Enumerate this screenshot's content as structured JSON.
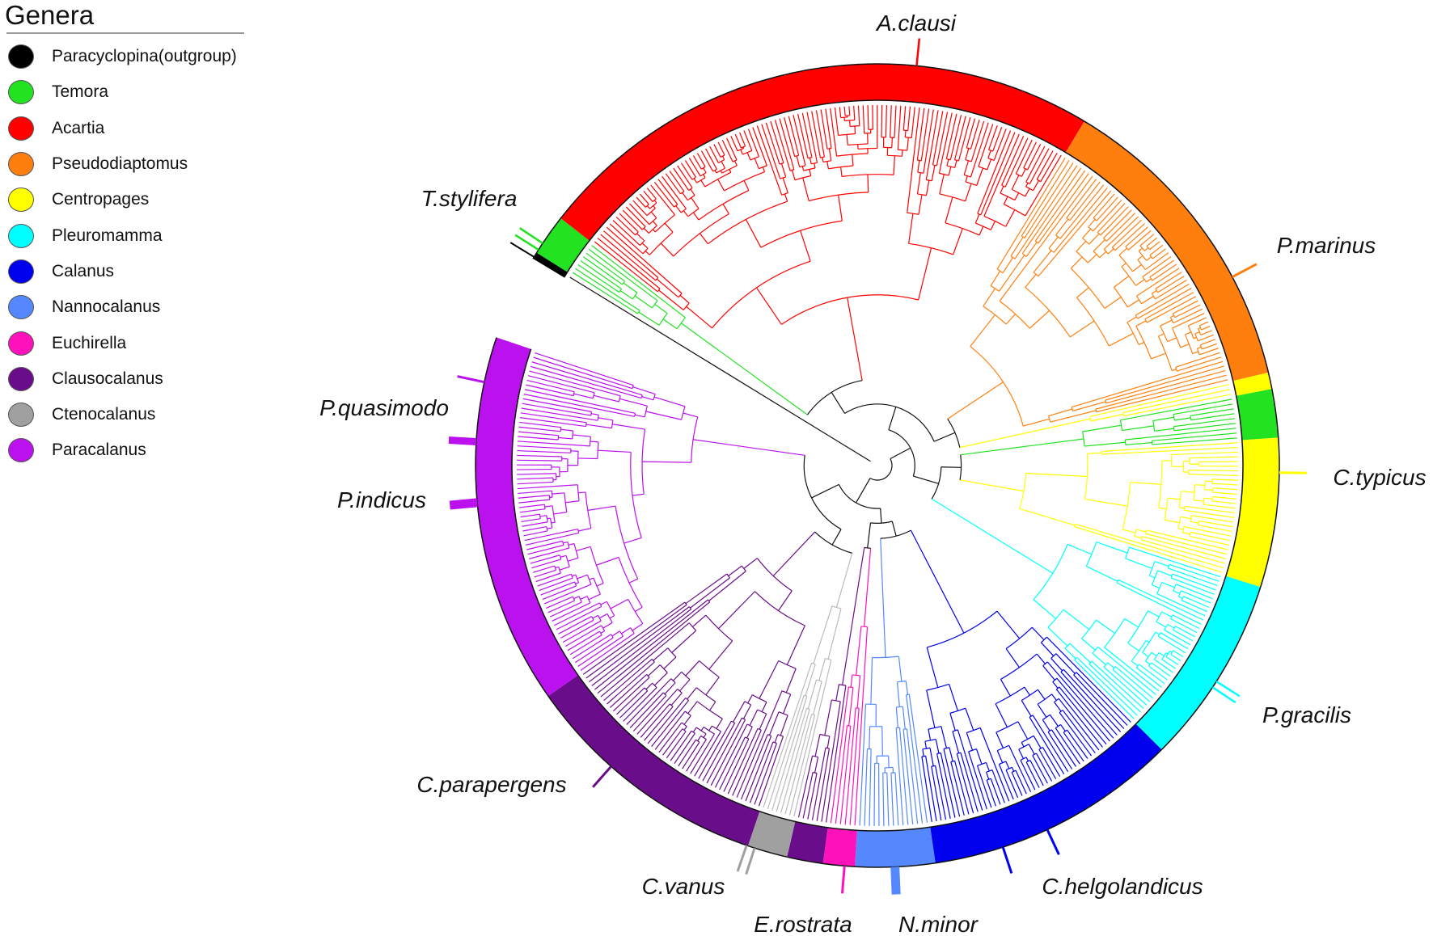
{
  "legend": {
    "title": "Genera",
    "items": [
      {
        "label": "Paracyclopina(outgroup)",
        "color": "#000000"
      },
      {
        "label": "Temora",
        "color": "#22e222"
      },
      {
        "label": "Acartia",
        "color": "#ff0000"
      },
      {
        "label": "Pseudodiaptomus",
        "color": "#ff7f0e"
      },
      {
        "label": "Centropages",
        "color": "#ffff00"
      },
      {
        "label": "Pleuromamma",
        "color": "#00ffff"
      },
      {
        "label": "Calanus",
        "color": "#0000ee"
      },
      {
        "label": "Nannocalanus",
        "color": "#5588ff"
      },
      {
        "label": "Euchirella",
        "color": "#ff11bb"
      },
      {
        "label": "Clausocalanus",
        "color": "#6a0d8a"
      },
      {
        "label": "Ctenocalanus",
        "color": "#a0a0a0"
      },
      {
        "label": "Paracalanus",
        "color": "#bb11ee"
      }
    ]
  },
  "species_labels": [
    {
      "text": "A.clausi",
      "genus": "Acartia"
    },
    {
      "text": "T.stylifera",
      "genus": "Temora"
    },
    {
      "text": "P.marinus",
      "genus": "Pseudodiaptomus"
    },
    {
      "text": "C.typicus",
      "genus": "Centropages"
    },
    {
      "text": "P.gracilis",
      "genus": "Pleuromamma"
    },
    {
      "text": "C.helgolandicus",
      "genus": "Calanus"
    },
    {
      "text": "N.minor",
      "genus": "Nannocalanus"
    },
    {
      "text": "E.rostrata",
      "genus": "Euchirella"
    },
    {
      "text": "C.vanus",
      "genus": "Ctenocalanus"
    },
    {
      "text": "C.parapergens",
      "genus": "Clausocalanus"
    },
    {
      "text": "P.indicus",
      "genus": "Paracalanus"
    },
    {
      "text": "P.quasimodo",
      "genus": "Paracalanus"
    }
  ]
}
